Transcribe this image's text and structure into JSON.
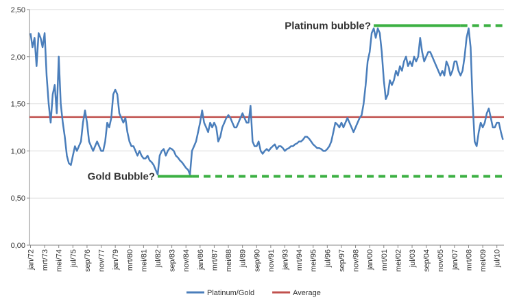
{
  "chart_data": {
    "type": "line",
    "categories": [
      "jan/72",
      null,
      null,
      null,
      null,
      null,
      null,
      "mrt/73",
      null,
      null,
      null,
      null,
      null,
      null,
      "mei/74",
      null,
      null,
      null,
      null,
      null,
      null,
      "jul/75",
      null,
      null,
      null,
      null,
      null,
      null,
      "sep/76",
      null,
      null,
      null,
      null,
      null,
      null,
      "nov/77",
      null,
      null,
      null,
      null,
      null,
      null,
      "jan/79",
      null,
      null,
      null,
      null,
      null,
      null,
      "mrt/80",
      null,
      null,
      null,
      null,
      null,
      null,
      "mei/81",
      null,
      null,
      null,
      null,
      null,
      null,
      "jul/82",
      null,
      null,
      null,
      null,
      null,
      null,
      "sep/83",
      null,
      null,
      null,
      null,
      null,
      null,
      "nov/84",
      null,
      null,
      null,
      null,
      null,
      null,
      "jan/86",
      null,
      null,
      null,
      null,
      null,
      null,
      "mrt/87",
      null,
      null,
      null,
      null,
      null,
      null,
      "mei/88",
      null,
      null,
      null,
      null,
      null,
      null,
      "jul/89",
      null,
      null,
      null,
      null,
      null,
      null,
      "sep/90",
      null,
      null,
      null,
      null,
      null,
      null,
      "nov/91",
      null,
      null,
      null,
      null,
      null,
      null,
      "jan/93",
      null,
      null,
      null,
      null,
      null,
      null,
      "mrt/94",
      null,
      null,
      null,
      null,
      null,
      null,
      "mei/95",
      null,
      null,
      null,
      null,
      null,
      null,
      "jul/96",
      null,
      null,
      null,
      null,
      null,
      null,
      "sep/97",
      null,
      null,
      null,
      null,
      null,
      null,
      "nov/98",
      null,
      null,
      null,
      null,
      null,
      null,
      "jan/00",
      null,
      null,
      null,
      null,
      null,
      null,
      "mrt/01",
      null,
      null,
      null,
      null,
      null,
      null,
      "mei/02",
      null,
      null,
      null,
      null,
      null,
      null,
      "jul/03",
      null,
      null,
      null,
      null,
      null,
      null,
      "sep/04",
      null,
      null,
      null,
      null,
      null,
      null,
      "nov/05",
      null,
      null,
      null,
      null,
      null,
      null,
      "jan/07",
      null,
      null,
      null,
      null,
      null,
      null,
      "mrt/08",
      null,
      null,
      null,
      null,
      null,
      null,
      "mei/09",
      null,
      null,
      null,
      null,
      null,
      null,
      "jul/10",
      null,
      null,
      null
    ],
    "series": [
      {
        "name": "Platinum/Gold",
        "color": "#4a7ebb",
        "values": [
          2.25,
          2.1,
          2.2,
          1.9,
          2.25,
          2.2,
          2.1,
          2.25,
          1.8,
          1.5,
          1.3,
          1.6,
          1.7,
          1.4,
          2.0,
          1.5,
          1.3,
          1.15,
          0.95,
          0.87,
          0.85,
          0.95,
          1.05,
          1.0,
          1.05,
          1.1,
          1.3,
          1.43,
          1.3,
          1.1,
          1.05,
          1.0,
          1.05,
          1.1,
          1.05,
          1.0,
          1.0,
          1.1,
          1.3,
          1.25,
          1.35,
          1.6,
          1.65,
          1.6,
          1.4,
          1.35,
          1.3,
          1.35,
          1.2,
          1.1,
          1.05,
          1.05,
          1.0,
          0.95,
          1.0,
          0.95,
          0.92,
          0.92,
          0.95,
          0.9,
          0.88,
          0.85,
          0.8,
          0.75,
          0.95,
          1.0,
          1.02,
          0.95,
          1.0,
          1.03,
          1.02,
          1.0,
          0.95,
          0.93,
          0.9,
          0.88,
          0.85,
          0.82,
          0.8,
          0.75,
          1.0,
          1.05,
          1.1,
          1.2,
          1.3,
          1.43,
          1.3,
          1.25,
          1.2,
          1.3,
          1.25,
          1.3,
          1.25,
          1.1,
          1.15,
          1.25,
          1.3,
          1.35,
          1.38,
          1.35,
          1.3,
          1.25,
          1.25,
          1.3,
          1.35,
          1.4,
          1.35,
          1.3,
          1.3,
          1.48,
          1.1,
          1.05,
          1.05,
          1.1,
          1.0,
          0.97,
          1.0,
          1.02,
          1.0,
          1.03,
          1.05,
          1.07,
          1.02,
          1.05,
          1.05,
          1.03,
          1.0,
          1.02,
          1.03,
          1.05,
          1.05,
          1.07,
          1.08,
          1.1,
          1.1,
          1.12,
          1.15,
          1.15,
          1.13,
          1.1,
          1.07,
          1.05,
          1.03,
          1.03,
          1.02,
          1.0,
          1.0,
          1.02,
          1.05,
          1.1,
          1.2,
          1.3,
          1.28,
          1.25,
          1.3,
          1.25,
          1.3,
          1.35,
          1.3,
          1.25,
          1.2,
          1.25,
          1.3,
          1.35,
          1.38,
          1.5,
          1.7,
          1.95,
          2.05,
          2.25,
          2.3,
          2.2,
          2.3,
          2.25,
          2.05,
          1.75,
          1.55,
          1.6,
          1.75,
          1.7,
          1.75,
          1.85,
          1.8,
          1.9,
          1.85,
          1.95,
          2.0,
          1.9,
          1.95,
          1.9,
          2.0,
          1.95,
          2.0,
          2.2,
          2.05,
          1.95,
          2.0,
          2.05,
          2.05,
          2.0,
          1.95,
          1.9,
          1.85,
          1.8,
          1.85,
          1.8,
          1.95,
          1.9,
          1.8,
          1.85,
          1.95,
          1.95,
          1.85,
          1.8,
          1.85,
          2.0,
          2.2,
          2.3,
          2.1,
          1.5,
          1.1,
          1.05,
          1.2,
          1.3,
          1.25,
          1.3,
          1.4,
          1.45,
          1.35,
          1.25,
          1.25,
          1.3,
          1.3,
          1.2,
          1.12
        ]
      }
    ],
    "average": {
      "name": "Average",
      "color": "#c0504d",
      "value": 1.36
    },
    "annotations": [
      {
        "text": "Gold Bubble?",
        "value": 0.73,
        "span": [
          63,
          80
        ],
        "color": "#3cb043"
      },
      {
        "text": "Platinum bubble?",
        "value": 2.33,
        "span": [
          170,
          213
        ],
        "color": "#3cb043"
      }
    ],
    "ylim": [
      0,
      2.5
    ],
    "yticks": [
      {
        "value": 0,
        "label": "0,00"
      },
      {
        "value": 0.5,
        "label": "0,50"
      },
      {
        "value": 1,
        "label": "1,00"
      },
      {
        "value": 1.5,
        "label": "1,50"
      },
      {
        "value": 2,
        "label": "2,00"
      },
      {
        "value": 2.5,
        "label": "2,50"
      }
    ],
    "grid": true,
    "legend": "bottom"
  }
}
